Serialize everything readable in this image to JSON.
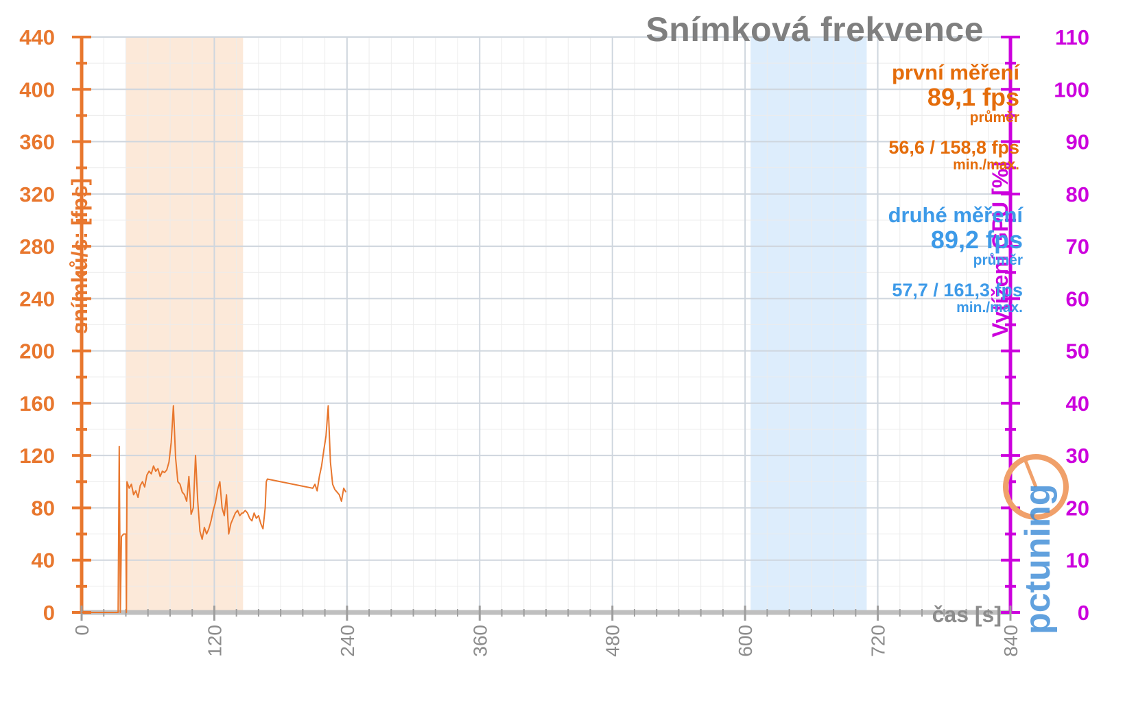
{
  "title": "Snímková frekvence",
  "colors": {
    "fps": "#e8772e",
    "gpu": "#cc00dd",
    "first_band": "#fbe5d2",
    "second_band": "#d7eafb",
    "grid": "#d9d9d9",
    "title": "#7f7f7f",
    "first_text": "#e46c0a",
    "second_text": "#3d9ae8"
  },
  "stats": {
    "first": {
      "label": "první měření",
      "avg": "89,1 fps",
      "avg_label": "průměr",
      "minmax": "56,6 / 158,8 fps",
      "minmax_label": "min./max."
    },
    "second": {
      "label": "druhé měření",
      "avg": "89,2 fps",
      "avg_label": "průměr",
      "minmax": "57,7 / 161,3 fps",
      "minmax_label": "min./max."
    }
  },
  "logo": {
    "name": "pctuning-logo",
    "text": "pctuning"
  },
  "chart_data": {
    "type": "line",
    "title": "Snímková frekvence",
    "xlabel": "čas [s]",
    "ylabel": "snímků/s: [fps]",
    "y2label": "Vytížení GPU [%]",
    "xlim": [
      0,
      840
    ],
    "ylim": [
      0,
      440
    ],
    "y2lim": [
      0,
      110
    ],
    "xticks": [
      0,
      120,
      240,
      360,
      480,
      600,
      720,
      840
    ],
    "yticks": [
      0,
      40,
      80,
      120,
      160,
      200,
      240,
      280,
      320,
      360,
      400,
      440
    ],
    "y2ticks": [
      0,
      10,
      20,
      30,
      40,
      50,
      60,
      70,
      80,
      90,
      100,
      110
    ],
    "grid": true,
    "highlight_bands": [
      {
        "name": "první měření",
        "x": [
          40,
          146
        ]
      },
      {
        "name": "druhé měření",
        "x": [
          605,
          710
        ]
      }
    ],
    "series": [
      {
        "axis": "left",
        "points": [
          [
            0,
            0
          ],
          [
            33,
            0
          ],
          [
            34,
            127
          ],
          [
            35,
            0
          ],
          [
            36,
            58
          ],
          [
            38,
            60
          ],
          [
            40,
            60
          ],
          [
            40.5,
            0
          ],
          [
            41,
            100
          ],
          [
            43,
            95
          ],
          [
            45,
            98
          ],
          [
            47,
            90
          ],
          [
            49,
            93
          ],
          [
            51,
            88
          ],
          [
            53,
            97
          ],
          [
            55,
            100
          ],
          [
            57,
            96
          ],
          [
            59,
            105
          ],
          [
            61,
            108
          ],
          [
            63,
            106
          ],
          [
            65,
            112
          ],
          [
            67,
            108
          ],
          [
            69,
            110
          ],
          [
            71,
            104
          ],
          [
            73,
            108
          ],
          [
            75,
            107
          ],
          [
            77,
            109
          ],
          [
            79,
            115
          ],
          [
            81,
            130
          ],
          [
            83,
            158
          ],
          [
            85,
            118
          ],
          [
            87,
            100
          ],
          [
            89,
            98
          ],
          [
            91,
            92
          ],
          [
            93,
            90
          ],
          [
            95,
            85
          ],
          [
            97,
            104
          ],
          [
            99,
            75
          ],
          [
            101,
            80
          ],
          [
            103,
            120
          ],
          [
            105,
            85
          ],
          [
            107,
            62
          ],
          [
            109,
            56
          ],
          [
            111,
            65
          ],
          [
            113,
            60
          ],
          [
            115,
            64
          ],
          [
            117,
            70
          ],
          [
            119,
            78
          ],
          [
            121,
            84
          ],
          [
            123,
            94
          ],
          [
            125,
            100
          ],
          [
            127,
            80
          ],
          [
            129,
            74
          ],
          [
            131,
            90
          ],
          [
            133,
            60
          ],
          [
            135,
            68
          ],
          [
            137,
            72
          ],
          [
            139,
            76
          ],
          [
            141,
            78
          ],
          [
            143,
            74
          ],
          [
            145,
            76
          ],
          [
            146,
            76
          ],
          [
            148,
            78
          ],
          [
            150,
            76
          ],
          [
            152,
            72
          ],
          [
            154,
            70
          ],
          [
            156,
            76
          ],
          [
            158,
            72
          ],
          [
            160,
            74
          ],
          [
            162,
            68
          ],
          [
            164,
            64
          ],
          [
            166,
            80
          ],
          [
            167,
            100
          ],
          [
            168,
            102
          ],
          [
            209,
            95
          ],
          [
            211,
            98
          ],
          [
            213,
            93
          ],
          [
            215,
            104
          ],
          [
            217,
            112
          ],
          [
            219,
            124
          ],
          [
            221,
            135
          ],
          [
            223,
            158
          ],
          [
            225,
            115
          ],
          [
            227,
            98
          ],
          [
            229,
            94
          ],
          [
            231,
            92
          ],
          [
            233,
            90
          ],
          [
            235,
            85
          ],
          [
            237,
            95
          ],
          [
            239,
            92
          ]
        ]
      }
    ]
  }
}
